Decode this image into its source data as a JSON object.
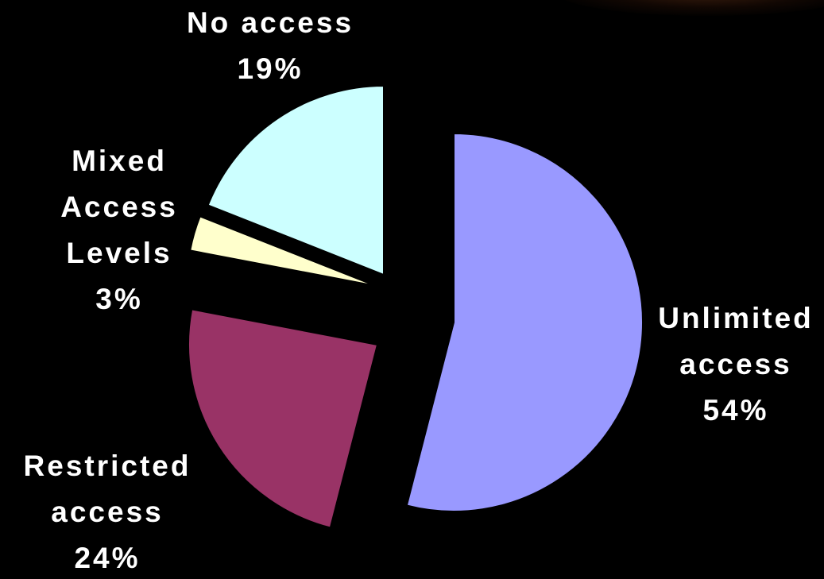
{
  "chart_data": {
    "type": "pie",
    "exploded": true,
    "start_angle_deg": 0,
    "direction": "clockwise",
    "slices": [
      {
        "name": "Unlimited access",
        "value": 54,
        "color": "#9999ff",
        "label_lines": [
          "Unlimited",
          "access",
          "54%"
        ]
      },
      {
        "name": "Restricted access",
        "value": 24,
        "color": "#993366",
        "label_lines": [
          "Restricted",
          "access",
          "24%"
        ]
      },
      {
        "name": "Mixed Access Levels",
        "value": 3,
        "color": "#ffffcc",
        "label_lines": [
          "Mixed",
          "Access",
          "Levels",
          "3%"
        ]
      },
      {
        "name": "No access",
        "value": 19,
        "color": "#ccffff",
        "label_lines": [
          "No  access",
          "19%"
        ]
      }
    ],
    "outline_color": "#000000",
    "background_color": "#000000",
    "label_color": "#ffffff"
  }
}
